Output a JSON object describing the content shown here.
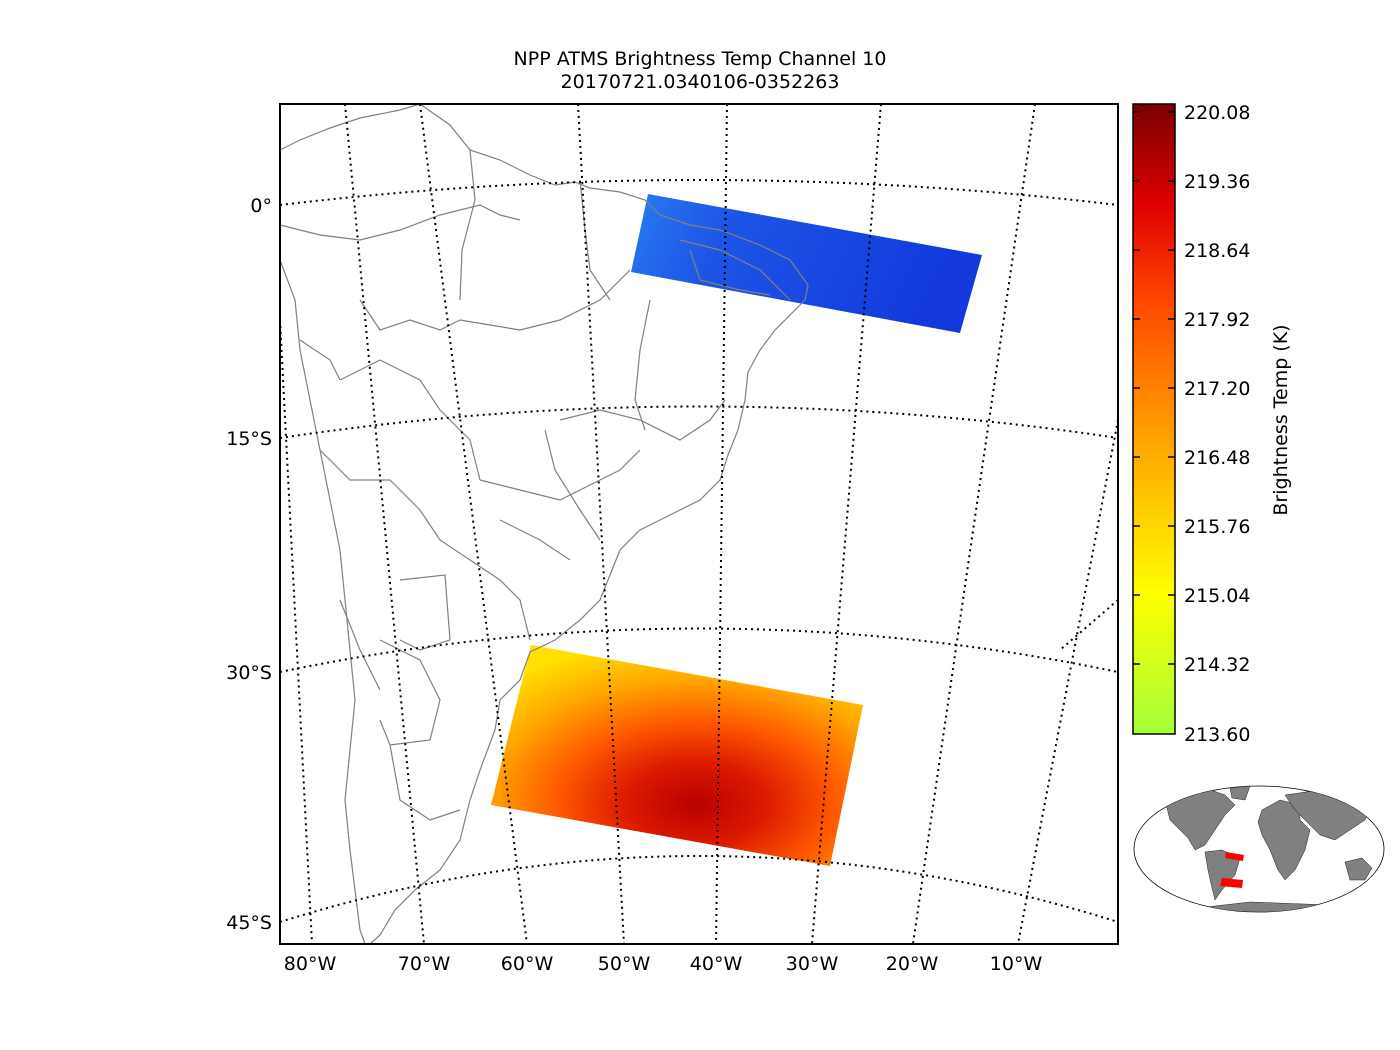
{
  "title": {
    "line1": "NPP ATMS Brightness Temp Channel 10",
    "line2": "20170721.0340106-0352263"
  },
  "map": {
    "projection": "conic",
    "lon_ticks": [
      "80°W",
      "70°W",
      "60°W",
      "50°W",
      "40°W",
      "30°W",
      "20°W",
      "10°W"
    ],
    "lat_ticks": [
      "0°",
      "15°S",
      "30°S",
      "45°S"
    ],
    "graticule_style": "dotted",
    "boundary_color": "#808080",
    "swaths": [
      {
        "name": "north-swath",
        "color_range": [
          "#1540e0",
          "#2a7cf2"
        ]
      },
      {
        "name": "south-swath",
        "color_range": [
          "#ffee00",
          "#c00000"
        ]
      }
    ]
  },
  "colorbar": {
    "label": "Brightness Temp (K)",
    "ticks": [
      "220.08",
      "219.36",
      "218.64",
      "217.92",
      "217.20",
      "216.48",
      "215.76",
      "215.04",
      "214.32",
      "213.60"
    ],
    "vmin": 213.6,
    "vmax": 220.08,
    "colors": [
      "#a4ff3a",
      "#ffff00",
      "#ffaa00",
      "#ff4a00",
      "#e00000",
      "#7a0000"
    ]
  },
  "inset": {
    "land_color": "#808080",
    "highlight_color": "#ff0000"
  }
}
